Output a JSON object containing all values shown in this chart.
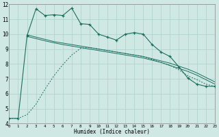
{
  "xlabel": "Humidex (Indice chaleur)",
  "bg_color": "#cfe8e4",
  "grid_color": "#aacfca",
  "line_color": "#1a6e5e",
  "x_ticks": [
    0,
    1,
    2,
    3,
    4,
    5,
    6,
    7,
    8,
    9,
    10,
    11,
    12,
    13,
    14,
    15,
    16,
    17,
    18,
    19,
    20,
    21,
    22,
    23
  ],
  "y_ticks": [
    4,
    5,
    6,
    7,
    8,
    9,
    10,
    11,
    12
  ],
  "ylim": [
    4,
    12
  ],
  "xlim": [
    0,
    23
  ],
  "line1_x": [
    0,
    1,
    2,
    3,
    4,
    5,
    6,
    7,
    8,
    9,
    10,
    11,
    12,
    13,
    14,
    15,
    16,
    17,
    18,
    19,
    20,
    21,
    22,
    23
  ],
  "line1_y": [
    4.35,
    4.35,
    9.9,
    11.7,
    11.25,
    11.3,
    11.25,
    11.75,
    10.7,
    10.65,
    10.0,
    9.8,
    9.6,
    10.0,
    10.1,
    10.0,
    9.3,
    8.8,
    8.5,
    7.8,
    7.05,
    6.65,
    6.5,
    6.5
  ],
  "line2_x": [
    2,
    3,
    4,
    5,
    6,
    7,
    8,
    9,
    10,
    11,
    12,
    13,
    14,
    15,
    16,
    17,
    18,
    19,
    20,
    21,
    22,
    23
  ],
  "line2_y": [
    9.95,
    9.8,
    9.65,
    9.5,
    9.4,
    9.3,
    9.2,
    9.1,
    9.0,
    8.9,
    8.8,
    8.7,
    8.6,
    8.5,
    8.35,
    8.2,
    8.05,
    7.85,
    7.65,
    7.4,
    7.1,
    6.8
  ],
  "line3_x": [
    2,
    3,
    4,
    5,
    6,
    7,
    8,
    9,
    10,
    11,
    12,
    13,
    14,
    15,
    16,
    17,
    18,
    19,
    20,
    21,
    22,
    23
  ],
  "line3_y": [
    9.85,
    9.7,
    9.55,
    9.42,
    9.3,
    9.2,
    9.1,
    9.0,
    8.9,
    8.8,
    8.7,
    8.6,
    8.5,
    8.4,
    8.25,
    8.1,
    7.9,
    7.7,
    7.5,
    7.25,
    6.95,
    6.65
  ],
  "line4_x": [
    0,
    1,
    2,
    3,
    4,
    5,
    6,
    7,
    8,
    9,
    10,
    11,
    12,
    13,
    14,
    15,
    16,
    17,
    18,
    19,
    20,
    21,
    22,
    23
  ],
  "line4_y": [
    4.35,
    4.35,
    4.6,
    5.3,
    6.3,
    7.2,
    7.95,
    8.6,
    9.05,
    9.1,
    9.0,
    8.9,
    8.8,
    8.7,
    8.6,
    8.5,
    8.3,
    8.1,
    7.9,
    7.6,
    7.2,
    6.95,
    6.65,
    6.5
  ]
}
